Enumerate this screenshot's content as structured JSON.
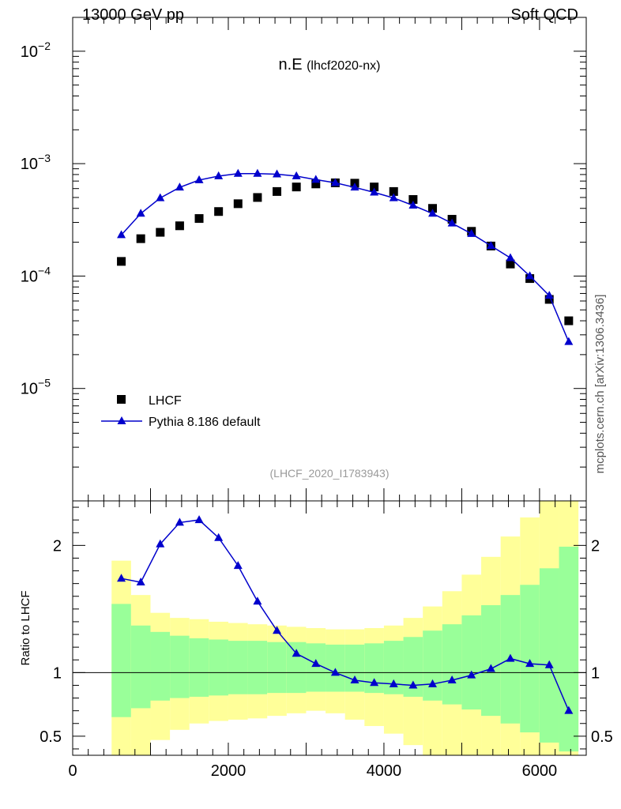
{
  "header": {
    "energy_label": "13000 GeV pp",
    "process_label": "Soft QCD"
  },
  "side_label": "mcplots.cern.ch [arXiv:1306.3436]",
  "chart_data": [
    {
      "type": "scatter",
      "panel": "main",
      "title_main": "n.E",
      "title_sub": "(lhcf2020-nx)",
      "watermark": "(LHCF_2020_I1783943)",
      "x_range": [
        0,
        6600
      ],
      "y_scale": "log",
      "y_range": [
        1e-06,
        0.02
      ],
      "y_ticks": [
        {
          "value": 1e-05,
          "base": "10",
          "exp": "−5"
        },
        {
          "value": 0.0001,
          "base": "10",
          "exp": "−4"
        },
        {
          "value": 0.001,
          "base": "10",
          "exp": "−3"
        },
        {
          "value": 0.01,
          "base": "10",
          "exp": "−2"
        }
      ],
      "legend_position": "bottom-left",
      "series": [
        {
          "name": "LHCF",
          "marker": "square",
          "color": "#000000",
          "x": [
            625,
            875,
            1125,
            1375,
            1625,
            1875,
            2125,
            2375,
            2625,
            2875,
            3125,
            3375,
            3625,
            3875,
            4125,
            4375,
            4625,
            4875,
            5125,
            5375,
            5625,
            5875,
            6125,
            6375
          ],
          "y": [
            0.000135,
            0.000215,
            0.000245,
            0.00028,
            0.000325,
            0.000375,
            0.00044,
            0.0005,
            0.000565,
            0.00062,
            0.00066,
            0.000675,
            0.00067,
            0.00062,
            0.000565,
            0.00048,
            0.0004,
            0.00032,
            0.00025,
            0.000185,
            0.000128,
            9.5e-05,
            6.2e-05,
            4e-05
          ]
        },
        {
          "name": "Pythia 8.186 default",
          "marker": "triangle-line",
          "color": "#0000cc",
          "x": [
            625,
            875,
            1125,
            1375,
            1625,
            1875,
            2125,
            2375,
            2625,
            2875,
            3125,
            3375,
            3625,
            3875,
            4125,
            4375,
            4625,
            4875,
            5125,
            5375,
            5625,
            5875,
            6125,
            6375
          ],
          "y": [
            0.000232,
            0.00036,
            0.000495,
            0.000615,
            0.000715,
            0.000775,
            0.000815,
            0.000815,
            0.000805,
            0.000775,
            0.00072,
            0.000675,
            0.000615,
            0.000555,
            0.000495,
            0.000425,
            0.00036,
            0.000295,
            0.000238,
            0.000186,
            0.000145,
            0.0001,
            6.7e-05,
            2.6e-05
          ]
        }
      ]
    },
    {
      "type": "line",
      "panel": "ratio",
      "ylabel": "Ratio to LHCF",
      "x_range": [
        0,
        6600
      ],
      "y_range": [
        0.35,
        2.35
      ],
      "x_ticks": [
        0,
        2000,
        4000,
        6000
      ],
      "x_tick_labels": [
        "0",
        "2000",
        "4000",
        "6000"
      ],
      "y_ticks": [
        0.5,
        1,
        2
      ],
      "y_tick_labels": [
        "0.5",
        "1",
        "2"
      ],
      "bins": [
        {
          "x0": 500,
          "x1": 750,
          "in_lo": 0.65,
          "in_hi": 1.54,
          "out_lo": 0.2,
          "out_hi": 1.88
        },
        {
          "x0": 750,
          "x1": 1000,
          "in_lo": 0.72,
          "in_hi": 1.37,
          "out_lo": 0.3,
          "out_hi": 1.61
        },
        {
          "x0": 1000,
          "x1": 1250,
          "in_lo": 0.78,
          "in_hi": 1.32,
          "out_lo": 0.47,
          "out_hi": 1.47
        },
        {
          "x0": 1250,
          "x1": 1500,
          "in_lo": 0.8,
          "in_hi": 1.29,
          "out_lo": 0.55,
          "out_hi": 1.43
        },
        {
          "x0": 1500,
          "x1": 1750,
          "in_lo": 0.81,
          "in_hi": 1.27,
          "out_lo": 0.6,
          "out_hi": 1.42
        },
        {
          "x0": 1750,
          "x1": 2000,
          "in_lo": 0.82,
          "in_hi": 1.26,
          "out_lo": 0.62,
          "out_hi": 1.4
        },
        {
          "x0": 2000,
          "x1": 2250,
          "in_lo": 0.83,
          "in_hi": 1.25,
          "out_lo": 0.63,
          "out_hi": 1.39
        },
        {
          "x0": 2250,
          "x1": 2500,
          "in_lo": 0.83,
          "in_hi": 1.25,
          "out_lo": 0.64,
          "out_hi": 1.38
        },
        {
          "x0": 2500,
          "x1": 2750,
          "in_lo": 0.84,
          "in_hi": 1.24,
          "out_lo": 0.66,
          "out_hi": 1.37
        },
        {
          "x0": 2750,
          "x1": 3000,
          "in_lo": 0.84,
          "in_hi": 1.24,
          "out_lo": 0.68,
          "out_hi": 1.36
        },
        {
          "x0": 3000,
          "x1": 3250,
          "in_lo": 0.85,
          "in_hi": 1.23,
          "out_lo": 0.7,
          "out_hi": 1.35
        },
        {
          "x0": 3250,
          "x1": 3500,
          "in_lo": 0.85,
          "in_hi": 1.22,
          "out_lo": 0.68,
          "out_hi": 1.34
        },
        {
          "x0": 3500,
          "x1": 3750,
          "in_lo": 0.85,
          "in_hi": 1.22,
          "out_lo": 0.63,
          "out_hi": 1.34
        },
        {
          "x0": 3750,
          "x1": 4000,
          "in_lo": 0.84,
          "in_hi": 1.23,
          "out_lo": 0.58,
          "out_hi": 1.35
        },
        {
          "x0": 4000,
          "x1": 4250,
          "in_lo": 0.83,
          "in_hi": 1.25,
          "out_lo": 0.52,
          "out_hi": 1.37
        },
        {
          "x0": 4250,
          "x1": 4500,
          "in_lo": 0.81,
          "in_hi": 1.28,
          "out_lo": 0.43,
          "out_hi": 1.43
        },
        {
          "x0": 4500,
          "x1": 4750,
          "in_lo": 0.78,
          "in_hi": 1.33,
          "out_lo": 0.35,
          "out_hi": 1.52
        },
        {
          "x0": 4750,
          "x1": 5000,
          "in_lo": 0.75,
          "in_hi": 1.38,
          "out_lo": 0.35,
          "out_hi": 1.64
        },
        {
          "x0": 5000,
          "x1": 5250,
          "in_lo": 0.71,
          "in_hi": 1.45,
          "out_lo": 0.35,
          "out_hi": 1.77
        },
        {
          "x0": 5250,
          "x1": 5500,
          "in_lo": 0.66,
          "in_hi": 1.53,
          "out_lo": 0.35,
          "out_hi": 1.91
        },
        {
          "x0": 5500,
          "x1": 5750,
          "in_lo": 0.6,
          "in_hi": 1.61,
          "out_lo": 0.35,
          "out_hi": 2.07
        },
        {
          "x0": 5750,
          "x1": 6000,
          "in_lo": 0.53,
          "in_hi": 1.69,
          "out_lo": 0.35,
          "out_hi": 2.22
        },
        {
          "x0": 6000,
          "x1": 6250,
          "in_lo": 0.45,
          "in_hi": 1.82,
          "out_lo": 0.35,
          "out_hi": 2.35
        },
        {
          "x0": 6250,
          "x1": 6500,
          "in_lo": 0.38,
          "in_hi": 1.99,
          "out_lo": 0.35,
          "out_hi": 2.35
        }
      ],
      "band_colors": {
        "inner": "#99ff99",
        "outer": "#ffff99"
      },
      "series": [
        {
          "name": "Pythia 8.186 default",
          "color": "#0000cc",
          "x": [
            625,
            875,
            1125,
            1375,
            1625,
            1875,
            2125,
            2375,
            2625,
            2875,
            3125,
            3375,
            3625,
            3875,
            4125,
            4375,
            4625,
            4875,
            5125,
            5375,
            5625,
            5875,
            6125,
            6375
          ],
          "y": [
            1.74,
            1.71,
            2.01,
            2.18,
            2.2,
            2.06,
            1.84,
            1.56,
            1.33,
            1.15,
            1.07,
            1.0,
            0.94,
            0.92,
            0.91,
            0.9,
            0.91,
            0.94,
            0.98,
            1.03,
            1.11,
            1.07,
            1.06,
            0.7
          ]
        }
      ]
    }
  ]
}
